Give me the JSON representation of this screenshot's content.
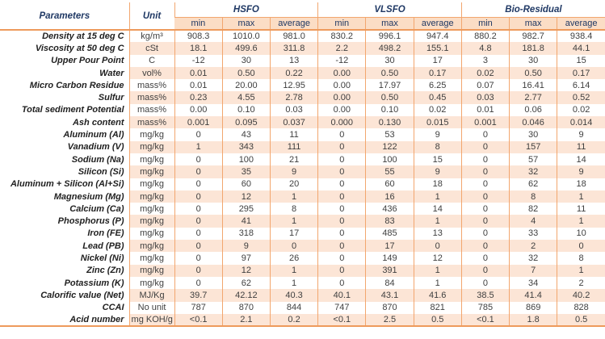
{
  "colors": {
    "line": "#f2a66e",
    "line_strong": "#ee9a5c",
    "stripe": "#fce5d6",
    "header_fill": "#fbddc5",
    "navy_header_text": "#1f3864",
    "body_text": "#3f3f3f",
    "param_text": "#1f1f1f"
  },
  "table": {
    "header": {
      "parameters_label": "Parameters",
      "unit_label": "Unit",
      "groups": [
        {
          "label": "HSFO",
          "sub": [
            "min",
            "max",
            "average"
          ]
        },
        {
          "label": "VLSFO",
          "sub": [
            "min",
            "max",
            "average"
          ]
        },
        {
          "label": "Bio-Residual",
          "sub": [
            "min",
            "max",
            "average"
          ]
        }
      ]
    },
    "rows": [
      {
        "param": "Density at 15 deg C",
        "unit": "kg/m³",
        "values": [
          "908.3",
          "1010.0",
          "981.0",
          "830.2",
          "996.1",
          "947.4",
          "880.2",
          "982.7",
          "938.4"
        ]
      },
      {
        "param": "Viscosity at 50 deg C",
        "unit": "cSt",
        "values": [
          "18.1",
          "499.6",
          "311.8",
          "2.2",
          "498.2",
          "155.1",
          "4.8",
          "181.8",
          "44.1"
        ]
      },
      {
        "param": "Upper Pour Point",
        "unit": "C",
        "values": [
          "-12",
          "30",
          "13",
          "-12",
          "30",
          "17",
          "3",
          "30",
          "15"
        ]
      },
      {
        "param": "Water",
        "unit": "vol%",
        "values": [
          "0.01",
          "0.50",
          "0.22",
          "0.00",
          "0.50",
          "0.17",
          "0.02",
          "0.50",
          "0.17"
        ]
      },
      {
        "param": "Micro Carbon Residue",
        "unit": "mass%",
        "values": [
          "0.01",
          "20.00",
          "12.95",
          "0.00",
          "17.97",
          "6.25",
          "0.07",
          "16.41",
          "6.14"
        ]
      },
      {
        "param": "Sulfur",
        "unit": "mass%",
        "values": [
          "0.23",
          "4.55",
          "2.78",
          "0.00",
          "0.50",
          "0.45",
          "0.03",
          "2.77",
          "0.52"
        ]
      },
      {
        "param": "Total sediment Potential",
        "unit": "mass%",
        "values": [
          "0.00",
          "0.10",
          "0.03",
          "0.00",
          "0.10",
          "0.02",
          "0.01",
          "0.06",
          "0.02"
        ]
      },
      {
        "param": "Ash content",
        "unit": "mass%",
        "values": [
          "0.001",
          "0.095",
          "0.037",
          "0.000",
          "0.130",
          "0.015",
          "0.001",
          "0.046",
          "0.014"
        ]
      },
      {
        "param": "Aluminum (Al)",
        "unit": "mg/kg",
        "values": [
          "0",
          "43",
          "11",
          "0",
          "53",
          "9",
          "0",
          "30",
          "9"
        ]
      },
      {
        "param": "Vanadium (V)",
        "unit": "mg/kg",
        "values": [
          "1",
          "343",
          "111",
          "0",
          "122",
          "8",
          "0",
          "157",
          "11"
        ]
      },
      {
        "param": "Sodium (Na)",
        "unit": "mg/kg",
        "values": [
          "0",
          "100",
          "21",
          "0",
          "100",
          "15",
          "0",
          "57",
          "14"
        ]
      },
      {
        "param": "Silicon (Si)",
        "unit": "mg/kg",
        "values": [
          "0",
          "35",
          "9",
          "0",
          "55",
          "9",
          "0",
          "32",
          "9"
        ]
      },
      {
        "param": "Aluminum + Silicon (Al+Si)",
        "unit": "mg/kg",
        "values": [
          "0",
          "60",
          "20",
          "0",
          "60",
          "18",
          "0",
          "62",
          "18"
        ]
      },
      {
        "param": "Magnesium (Mg)",
        "unit": "mg/kg",
        "values": [
          "0",
          "12",
          "1",
          "0",
          "16",
          "1",
          "0",
          "8",
          "1"
        ]
      },
      {
        "param": "Calcium (Ca)",
        "unit": "mg/kg",
        "values": [
          "0",
          "295",
          "8",
          "0",
          "436",
          "14",
          "0",
          "82",
          "11"
        ]
      },
      {
        "param": "Phosphorus (P)",
        "unit": "mg/kg",
        "values": [
          "0",
          "41",
          "1",
          "0",
          "83",
          "1",
          "0",
          "4",
          "1"
        ]
      },
      {
        "param": "Iron (FE)",
        "unit": "mg/kg",
        "values": [
          "0",
          "318",
          "17",
          "0",
          "485",
          "13",
          "0",
          "33",
          "10"
        ]
      },
      {
        "param": "Lead (PB)",
        "unit": "mg/kg",
        "values": [
          "0",
          "9",
          "0",
          "0",
          "17",
          "0",
          "0",
          "2",
          "0"
        ]
      },
      {
        "param": "Nickel (Ni)",
        "unit": "mg/kg",
        "values": [
          "0",
          "97",
          "26",
          "0",
          "149",
          "12",
          "0",
          "32",
          "8"
        ]
      },
      {
        "param": "Zinc (Zn)",
        "unit": "mg/kg",
        "values": [
          "0",
          "12",
          "1",
          "0",
          "391",
          "1",
          "0",
          "7",
          "1"
        ]
      },
      {
        "param": "Potassium (K)",
        "unit": "mg/kg",
        "values": [
          "0",
          "62",
          "1",
          "0",
          "84",
          "1",
          "0",
          "34",
          "2"
        ]
      },
      {
        "param": "Calorific value (Net)",
        "unit": "MJ/Kg",
        "values": [
          "39.7",
          "42.12",
          "40.3",
          "40.1",
          "43.1",
          "41.6",
          "38.5",
          "41.4",
          "40.2"
        ]
      },
      {
        "param": "CCAI",
        "unit": "No unit",
        "values": [
          "787",
          "870",
          "844",
          "747",
          "870",
          "821",
          "785",
          "869",
          "828"
        ]
      },
      {
        "param": "Acid number",
        "unit": "mg KOH/g",
        "values": [
          "<0.1",
          "2.1",
          "0.2",
          "<0.1",
          "2.5",
          "0.5",
          "<0.1",
          "1.8",
          "0.5"
        ]
      }
    ]
  }
}
